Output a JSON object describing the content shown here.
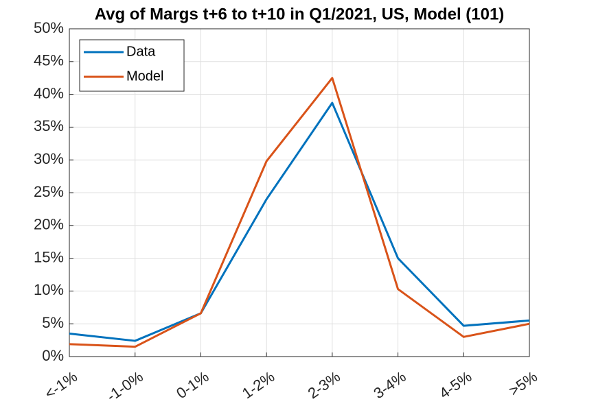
{
  "chart_data": {
    "type": "line",
    "title": "Avg of Margs t+6 to t+10 in Q1/2021, US, Model (101)",
    "categories": [
      "<-1%",
      "-1-0%",
      "0-1%",
      "1-2%",
      "2-3%",
      "3-4%",
      "4-5%",
      ">5%"
    ],
    "series": [
      {
        "name": "Data",
        "color": "#0072bd",
        "values": [
          3.5,
          2.4,
          6.6,
          24,
          38.7,
          15,
          4.7,
          5.5
        ]
      },
      {
        "name": "Model",
        "color": "#d95319",
        "values": [
          1.9,
          1.5,
          6.6,
          29.8,
          42.5,
          10.3,
          3.0,
          5.0
        ]
      }
    ],
    "ylim": [
      0,
      50
    ],
    "yticks": [
      {
        "value": 0,
        "label": "0%"
      },
      {
        "value": 5,
        "label": "5%"
      },
      {
        "value": 10,
        "label": "10%"
      },
      {
        "value": 15,
        "label": "15%"
      },
      {
        "value": 20,
        "label": "20%"
      },
      {
        "value": 25,
        "label": "25%"
      },
      {
        "value": 30,
        "label": "30%"
      },
      {
        "value": 35,
        "label": "35%"
      },
      {
        "value": 40,
        "label": "40%"
      },
      {
        "value": 45,
        "label": "45%"
      },
      {
        "value": 50,
        "label": "50%"
      }
    ],
    "grid": true,
    "legend": "upper-left"
  }
}
